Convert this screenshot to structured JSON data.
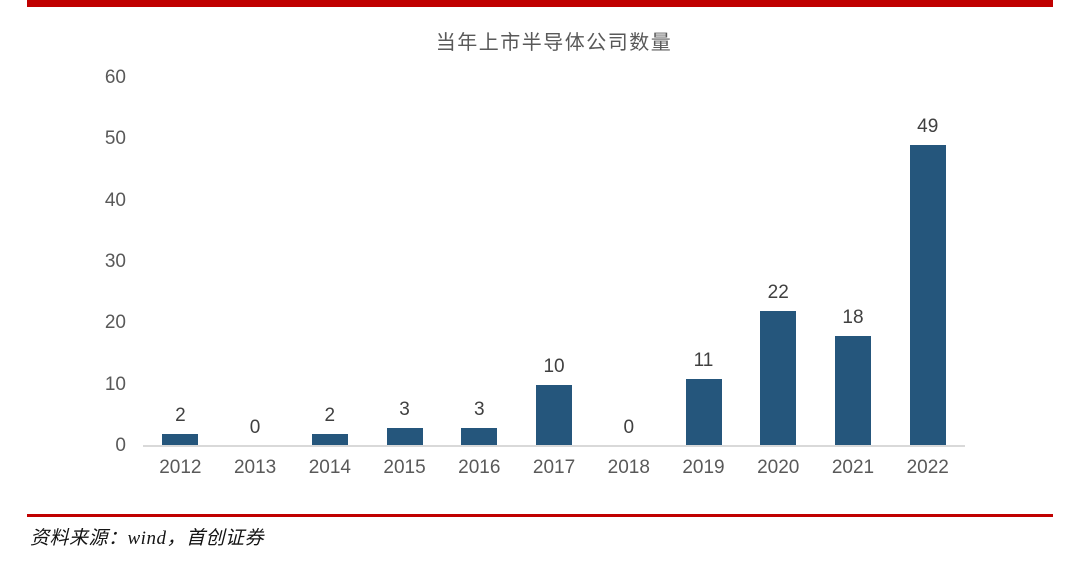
{
  "chart_data": {
    "type": "bar",
    "title": "当年上市半导体公司数量",
    "categories": [
      "2012",
      "2013",
      "2014",
      "2015",
      "2016",
      "2017",
      "2018",
      "2019",
      "2020",
      "2021",
      "2022"
    ],
    "values": [
      2,
      0,
      2,
      3,
      3,
      10,
      0,
      11,
      22,
      18,
      49
    ],
    "xlabel": "",
    "ylabel": "",
    "ylim": [
      0,
      60
    ],
    "yticks": [
      0,
      10,
      20,
      30,
      40,
      50,
      60
    ],
    "grid": false,
    "legend": false,
    "value_labels_shown": true
  },
  "source_note": "资料来源：wind，首创证券",
  "colors": {
    "bar": "#25567C",
    "accent_red": "#C00000",
    "axis_line": "#D9D9D9",
    "tick_label": "#595959",
    "value_label": "#404040",
    "title": "#595959"
  }
}
